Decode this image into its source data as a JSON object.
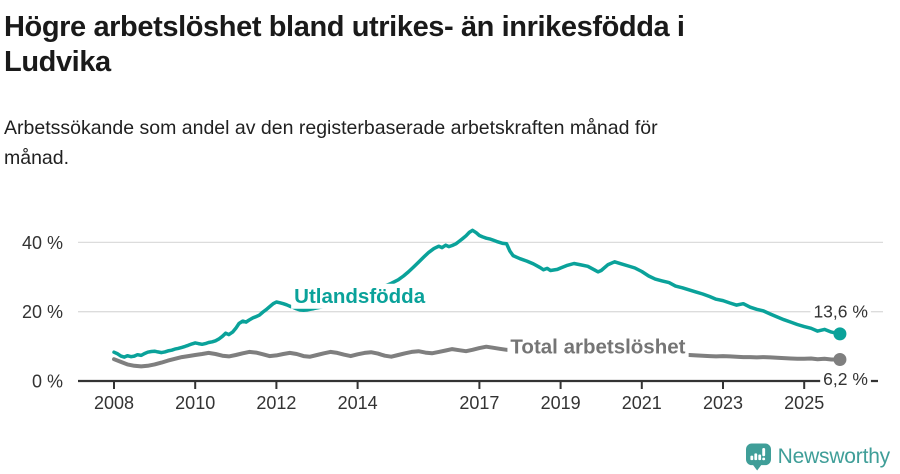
{
  "header": {
    "title": "Högre arbetslöshet bland utrikes- än inrikesfödda i Ludvika",
    "title_lines": [
      "Högre arbetslöshet bland utrikes- än inrikesfödda i",
      "Ludvika"
    ],
    "subtitle": "Arbetssökande som andel av den registerbaserade arbetskraften månad för månad.",
    "subtitle_lines": [
      "Arbetssökande som andel av den registerbaserade arbetskraften månad för",
      "månad."
    ]
  },
  "footer": {
    "brand": "Newsworthy"
  },
  "icons": {
    "brand_logo": "newsworthy-speech-pin-barchart-icon"
  },
  "colors": {
    "foreign_born_series": "#0aa29a",
    "total_series": "#7f7f7f",
    "total_label": "#757575",
    "axis": "#333333",
    "gridline": "#dcdcdc",
    "value_label": "#333333",
    "title_text": "#1a1a1a",
    "brand_teal": "#3f9e98",
    "background": "#ffffff"
  },
  "chart_data": {
    "type": "line",
    "title": "Högre arbetslöshet bland utrikes- än inrikesfödda i Ludvika",
    "subtitle": "Arbetssökande som andel av den registerbaserade arbetskraften månad för månad.",
    "xlabel": "",
    "ylabel": "",
    "unit": "%",
    "grid": "horizontal",
    "xlim": [
      2008,
      2026.1
    ],
    "ylim": [
      0,
      46
    ],
    "y_ticks": [
      {
        "value": 0,
        "label": "0 %"
      },
      {
        "value": 20,
        "label": "20 %"
      },
      {
        "value": 40,
        "label": "40 %"
      }
    ],
    "x_ticks": [
      {
        "value": 2008,
        "label": "2008"
      },
      {
        "value": 2010,
        "label": "2010"
      },
      {
        "value": 2012,
        "label": "2012"
      },
      {
        "value": 2014,
        "label": "2014"
      },
      {
        "value": 2017,
        "label": "2017"
      },
      {
        "value": 2019,
        "label": "2019"
      },
      {
        "value": 2021,
        "label": "2021"
      },
      {
        "value": 2023,
        "label": "2023"
      },
      {
        "value": 2025,
        "label": "2025"
      }
    ],
    "series": [
      {
        "name": "Utlandsfödda",
        "id": "utlandsfodda",
        "color": "#0aa29a",
        "line_width": 3.5,
        "end_value": 13.6,
        "end_label": "13,6 %",
        "end_label_y": 20,
        "inline_label": {
          "text": "Utlandsfödda",
          "x": 2014.05,
          "y": 24.6
        },
        "points": [
          [
            2008.0,
            8.3
          ],
          [
            2008.08,
            7.9
          ],
          [
            2008.17,
            7.2
          ],
          [
            2008.25,
            6.9
          ],
          [
            2008.33,
            7.3
          ],
          [
            2008.42,
            7.0
          ],
          [
            2008.5,
            7.2
          ],
          [
            2008.58,
            7.6
          ],
          [
            2008.67,
            7.4
          ],
          [
            2008.75,
            7.9
          ],
          [
            2008.83,
            8.3
          ],
          [
            2008.92,
            8.5
          ],
          [
            2009.0,
            8.6
          ],
          [
            2009.08,
            8.4
          ],
          [
            2009.17,
            8.2
          ],
          [
            2009.25,
            8.4
          ],
          [
            2009.33,
            8.7
          ],
          [
            2009.42,
            8.9
          ],
          [
            2009.5,
            9.2
          ],
          [
            2009.58,
            9.4
          ],
          [
            2009.67,
            9.7
          ],
          [
            2009.75,
            10.0
          ],
          [
            2009.83,
            10.3
          ],
          [
            2009.92,
            10.7
          ],
          [
            2010.0,
            11.0
          ],
          [
            2010.08,
            10.8
          ],
          [
            2010.17,
            10.6
          ],
          [
            2010.25,
            10.8
          ],
          [
            2010.33,
            11.1
          ],
          [
            2010.42,
            11.3
          ],
          [
            2010.5,
            11.6
          ],
          [
            2010.58,
            12.1
          ],
          [
            2010.67,
            12.9
          ],
          [
            2010.75,
            13.8
          ],
          [
            2010.83,
            13.4
          ],
          [
            2010.92,
            14.1
          ],
          [
            2011.0,
            15.2
          ],
          [
            2011.08,
            16.6
          ],
          [
            2011.17,
            17.3
          ],
          [
            2011.25,
            17.0
          ],
          [
            2011.33,
            17.6
          ],
          [
            2011.42,
            18.2
          ],
          [
            2011.5,
            18.6
          ],
          [
            2011.58,
            19.0
          ],
          [
            2011.67,
            19.9
          ],
          [
            2011.75,
            20.6
          ],
          [
            2011.83,
            21.4
          ],
          [
            2011.92,
            22.3
          ],
          [
            2012.0,
            22.8
          ],
          [
            2012.08,
            22.6
          ],
          [
            2012.17,
            22.3
          ],
          [
            2012.25,
            22.0
          ],
          [
            2012.33,
            21.6
          ],
          [
            2012.42,
            21.2
          ],
          [
            2012.5,
            20.8
          ],
          [
            2012.58,
            20.5
          ],
          [
            2012.67,
            20.4
          ],
          [
            2012.75,
            20.5
          ],
          [
            2012.83,
            20.7
          ],
          [
            2012.92,
            20.9
          ],
          [
            2013.0,
            21.1
          ],
          [
            2013.17,
            21.5
          ],
          [
            2013.33,
            22.0
          ],
          [
            2013.5,
            22.6
          ],
          [
            2013.67,
            23.2
          ],
          [
            2013.83,
            23.9
          ],
          [
            2014.0,
            24.6
          ],
          [
            2014.17,
            25.3
          ],
          [
            2014.33,
            26.0
          ],
          [
            2014.5,
            26.7
          ],
          [
            2014.67,
            27.4
          ],
          [
            2014.83,
            28.2
          ],
          [
            2015.0,
            29.2
          ],
          [
            2015.13,
            30.3
          ],
          [
            2015.25,
            31.5
          ],
          [
            2015.38,
            32.9
          ],
          [
            2015.5,
            34.3
          ],
          [
            2015.63,
            35.8
          ],
          [
            2015.75,
            37.1
          ],
          [
            2015.88,
            38.2
          ],
          [
            2016.0,
            38.9
          ],
          [
            2016.08,
            38.5
          ],
          [
            2016.17,
            39.2
          ],
          [
            2016.25,
            38.8
          ],
          [
            2016.33,
            39.1
          ],
          [
            2016.42,
            39.6
          ],
          [
            2016.5,
            40.3
          ],
          [
            2016.58,
            41.0
          ],
          [
            2016.67,
            41.9
          ],
          [
            2016.75,
            42.9
          ],
          [
            2016.83,
            43.5
          ],
          [
            2016.92,
            42.8
          ],
          [
            2017.0,
            42.0
          ],
          [
            2017.08,
            41.6
          ],
          [
            2017.17,
            41.2
          ],
          [
            2017.25,
            41.0
          ],
          [
            2017.33,
            40.7
          ],
          [
            2017.42,
            40.3
          ],
          [
            2017.5,
            40.0
          ],
          [
            2017.58,
            39.7
          ],
          [
            2017.67,
            39.6
          ],
          [
            2017.75,
            37.5
          ],
          [
            2017.83,
            36.2
          ],
          [
            2017.92,
            35.7
          ],
          [
            2018.0,
            35.3
          ],
          [
            2018.17,
            34.6
          ],
          [
            2018.33,
            33.8
          ],
          [
            2018.5,
            32.7
          ],
          [
            2018.58,
            32.1
          ],
          [
            2018.67,
            32.5
          ],
          [
            2018.75,
            31.9
          ],
          [
            2018.92,
            32.2
          ],
          [
            2019.0,
            32.6
          ],
          [
            2019.17,
            33.4
          ],
          [
            2019.33,
            33.9
          ],
          [
            2019.5,
            33.5
          ],
          [
            2019.67,
            33.1
          ],
          [
            2019.83,
            32.1
          ],
          [
            2019.92,
            31.5
          ],
          [
            2020.0,
            31.9
          ],
          [
            2020.17,
            33.6
          ],
          [
            2020.33,
            34.4
          ],
          [
            2020.5,
            33.8
          ],
          [
            2020.67,
            33.2
          ],
          [
            2020.83,
            32.6
          ],
          [
            2021.0,
            31.6
          ],
          [
            2021.17,
            30.3
          ],
          [
            2021.33,
            29.4
          ],
          [
            2021.5,
            28.9
          ],
          [
            2021.67,
            28.4
          ],
          [
            2021.83,
            27.4
          ],
          [
            2022.0,
            26.9
          ],
          [
            2022.17,
            26.3
          ],
          [
            2022.33,
            25.7
          ],
          [
            2022.5,
            25.1
          ],
          [
            2022.67,
            24.4
          ],
          [
            2022.83,
            23.6
          ],
          [
            2023.0,
            23.2
          ],
          [
            2023.17,
            22.5
          ],
          [
            2023.33,
            21.9
          ],
          [
            2023.5,
            22.3
          ],
          [
            2023.67,
            21.3
          ],
          [
            2023.83,
            20.7
          ],
          [
            2024.0,
            20.2
          ],
          [
            2024.17,
            19.3
          ],
          [
            2024.33,
            18.5
          ],
          [
            2024.5,
            17.7
          ],
          [
            2024.67,
            17.0
          ],
          [
            2024.83,
            16.3
          ],
          [
            2025.0,
            15.7
          ],
          [
            2025.17,
            15.2
          ],
          [
            2025.33,
            14.4
          ],
          [
            2025.5,
            14.9
          ],
          [
            2025.67,
            14.1
          ],
          [
            2025.88,
            13.6
          ]
        ]
      },
      {
        "name": "Total arbetslöshet",
        "id": "total",
        "color": "#7f7f7f",
        "line_width": 4,
        "end_value": 6.2,
        "end_label": "6,2 %",
        "end_label_y": 0.55,
        "inline_label": {
          "text": "Total arbetslöshet",
          "x": 2019.92,
          "y": 9.9
        },
        "points": [
          [
            2008.0,
            6.3
          ],
          [
            2008.17,
            5.5
          ],
          [
            2008.33,
            4.8
          ],
          [
            2008.5,
            4.4
          ],
          [
            2008.67,
            4.2
          ],
          [
            2008.83,
            4.4
          ],
          [
            2009.0,
            4.8
          ],
          [
            2009.17,
            5.3
          ],
          [
            2009.33,
            5.9
          ],
          [
            2009.5,
            6.4
          ],
          [
            2009.67,
            6.9
          ],
          [
            2009.83,
            7.2
          ],
          [
            2010.0,
            7.5
          ],
          [
            2010.17,
            7.8
          ],
          [
            2010.33,
            8.1
          ],
          [
            2010.5,
            7.8
          ],
          [
            2010.67,
            7.3
          ],
          [
            2010.83,
            7.1
          ],
          [
            2011.0,
            7.5
          ],
          [
            2011.17,
            8.0
          ],
          [
            2011.33,
            8.4
          ],
          [
            2011.5,
            8.2
          ],
          [
            2011.67,
            7.7
          ],
          [
            2011.83,
            7.2
          ],
          [
            2012.0,
            7.4
          ],
          [
            2012.17,
            7.8
          ],
          [
            2012.33,
            8.1
          ],
          [
            2012.5,
            7.8
          ],
          [
            2012.67,
            7.2
          ],
          [
            2012.83,
            7.0
          ],
          [
            2013.0,
            7.5
          ],
          [
            2013.17,
            8.0
          ],
          [
            2013.33,
            8.4
          ],
          [
            2013.5,
            8.1
          ],
          [
            2013.67,
            7.6
          ],
          [
            2013.83,
            7.2
          ],
          [
            2014.0,
            7.7
          ],
          [
            2014.17,
            8.1
          ],
          [
            2014.33,
            8.3
          ],
          [
            2014.5,
            7.9
          ],
          [
            2014.67,
            7.3
          ],
          [
            2014.83,
            7.0
          ],
          [
            2015.0,
            7.5
          ],
          [
            2015.17,
            8.0
          ],
          [
            2015.33,
            8.4
          ],
          [
            2015.5,
            8.6
          ],
          [
            2015.67,
            8.2
          ],
          [
            2015.83,
            8.0
          ],
          [
            2016.0,
            8.4
          ],
          [
            2016.17,
            8.8
          ],
          [
            2016.33,
            9.2
          ],
          [
            2016.5,
            8.9
          ],
          [
            2016.67,
            8.6
          ],
          [
            2016.83,
            9.0
          ],
          [
            2017.0,
            9.5
          ],
          [
            2017.17,
            9.9
          ],
          [
            2017.33,
            9.6
          ],
          [
            2017.5,
            9.3
          ],
          [
            2017.67,
            9.0
          ],
          [
            2017.83,
            8.8
          ],
          [
            2018.0,
            8.7
          ],
          [
            2018.17,
            8.9
          ],
          [
            2018.33,
            8.6
          ],
          [
            2018.5,
            8.4
          ],
          [
            2018.67,
            8.2
          ],
          [
            2018.83,
            8.4
          ],
          [
            2019.0,
            8.6
          ],
          [
            2019.17,
            8.8
          ],
          [
            2019.33,
            8.6
          ],
          [
            2019.5,
            8.4
          ],
          [
            2019.67,
            8.2
          ],
          [
            2019.83,
            8.1
          ],
          [
            2020.0,
            8.4
          ],
          [
            2020.17,
            9.1
          ],
          [
            2020.33,
            9.4
          ],
          [
            2020.5,
            9.2
          ],
          [
            2020.67,
            8.9
          ],
          [
            2020.83,
            8.6
          ],
          [
            2021.0,
            8.4
          ],
          [
            2021.17,
            8.2
          ],
          [
            2021.33,
            8.0
          ],
          [
            2021.5,
            7.9
          ],
          [
            2021.67,
            7.8
          ],
          [
            2021.83,
            7.7
          ],
          [
            2022.0,
            7.6
          ],
          [
            2022.17,
            7.5
          ],
          [
            2022.33,
            7.4
          ],
          [
            2022.5,
            7.3
          ],
          [
            2022.67,
            7.2
          ],
          [
            2022.83,
            7.1
          ],
          [
            2023.0,
            7.2
          ],
          [
            2023.17,
            7.1
          ],
          [
            2023.33,
            7.0
          ],
          [
            2023.5,
            6.9
          ],
          [
            2023.67,
            6.9
          ],
          [
            2023.83,
            6.8
          ],
          [
            2024.0,
            6.9
          ],
          [
            2024.17,
            6.8
          ],
          [
            2024.33,
            6.7
          ],
          [
            2024.5,
            6.6
          ],
          [
            2024.67,
            6.5
          ],
          [
            2024.83,
            6.4
          ],
          [
            2025.0,
            6.4
          ],
          [
            2025.17,
            6.5
          ],
          [
            2025.33,
            6.3
          ],
          [
            2025.5,
            6.4
          ],
          [
            2025.67,
            6.2
          ],
          [
            2025.88,
            6.2
          ]
        ]
      }
    ]
  }
}
